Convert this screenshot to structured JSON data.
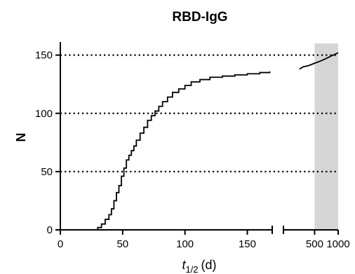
{
  "chart_data": {
    "type": "line",
    "title": "RBD-IgG",
    "ylabel": "N",
    "xlabel_main": "t",
    "xlabel_sub": "1/2",
    "xlabel_unit": "(d)",
    "ylim": [
      0,
      160
    ],
    "yticks": [
      0,
      50,
      100,
      150
    ],
    "grid": "dotted horizontal at 50, 100, 150",
    "x_segments": [
      {
        "range": [
          0,
          170
        ],
        "scale": "linear",
        "ticks": [
          0,
          50,
          100,
          150
        ]
      },
      {
        "range": [
          200,
          1000
        ],
        "scale": "log",
        "ticks": [
          500,
          1000
        ],
        "shaded": [
          500,
          1000
        ]
      }
    ],
    "series": [
      {
        "points": [
          [
            25,
            0
          ],
          [
            30,
            2
          ],
          [
            33,
            5
          ],
          [
            36,
            9
          ],
          [
            39,
            13
          ],
          [
            41,
            18
          ],
          [
            43,
            25
          ],
          [
            45,
            32
          ],
          [
            47,
            38
          ],
          [
            49,
            46
          ],
          [
            51,
            53
          ],
          [
            53,
            60
          ],
          [
            55,
            64
          ],
          [
            57,
            68
          ],
          [
            59,
            72
          ],
          [
            61,
            77
          ],
          [
            64,
            83
          ],
          [
            67,
            88
          ],
          [
            70,
            94
          ],
          [
            73,
            98
          ],
          [
            76,
            102
          ],
          [
            79,
            106
          ],
          [
            82,
            110
          ],
          [
            86,
            114
          ],
          [
            90,
            118
          ],
          [
            95,
            121
          ],
          [
            100,
            124
          ],
          [
            105,
            127
          ],
          [
            112,
            129
          ],
          [
            120,
            131
          ],
          [
            130,
            132
          ],
          [
            140,
            133
          ],
          [
            150,
            134
          ],
          [
            160,
            135
          ],
          [
            168,
            136
          ]
        ],
        "points_upper": [
          [
            320,
            138
          ],
          [
            360,
            140
          ],
          [
            420,
            141
          ],
          [
            500,
            143
          ],
          [
            600,
            145
          ],
          [
            700,
            147
          ],
          [
            800,
            149
          ],
          [
            1000,
            152
          ]
        ]
      }
    ]
  }
}
